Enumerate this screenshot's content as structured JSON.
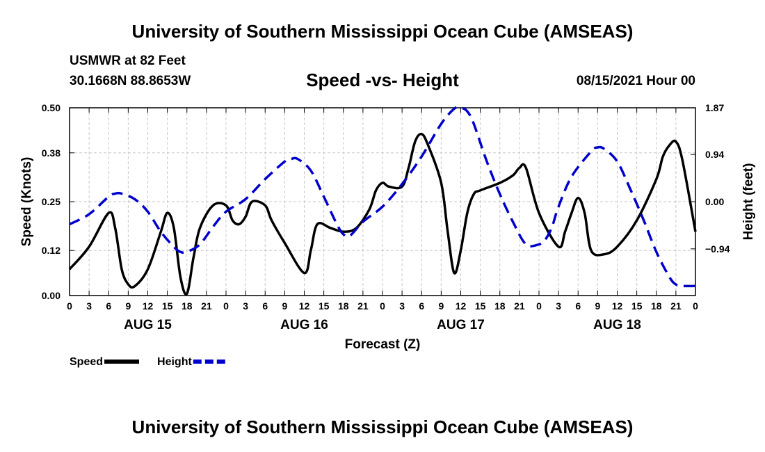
{
  "title_top": "University of Southern Mississippi Ocean Cube (AMSEAS)",
  "title_bottom": "University of Southern Mississippi Ocean Cube (AMSEAS)",
  "station": "USMWR at 82 Feet",
  "coords": "30.1668N  88.8653W",
  "subtitle": "Speed -vs- Height",
  "datetime": "08/15/2021 Hour 00",
  "chart_data": {
    "type": "line",
    "title": "Speed -vs- Height",
    "xlabel": "Forecast (Z)",
    "ylabel": "Speed (Knots)",
    "y2label": "Height (feet)",
    "ylim": [
      0,
      0.5
    ],
    "y2lim": [
      -1.87,
      1.87
    ],
    "xlim": [
      0,
      96
    ],
    "yticks": [
      "0.00",
      "0.12",
      "0.25",
      "0.38",
      "0.50"
    ],
    "y2ticks": [
      {
        "value": 1.87,
        "label": "1.87"
      },
      {
        "value": 0.94,
        "label": "0.94"
      },
      {
        "value": 0.0,
        "label": "0.00"
      },
      {
        "value": -0.94,
        "label": "−0.94"
      }
    ],
    "xticks": [
      {
        "value": 0,
        "label": "0"
      },
      {
        "value": 3,
        "label": "3"
      },
      {
        "value": 6,
        "label": "6"
      },
      {
        "value": 9,
        "label": "9"
      },
      {
        "value": 12,
        "label": "12"
      },
      {
        "value": 15,
        "label": "15"
      },
      {
        "value": 18,
        "label": "18"
      },
      {
        "value": 21,
        "label": "21"
      },
      {
        "value": 24,
        "label": "0"
      },
      {
        "value": 27,
        "label": "3"
      },
      {
        "value": 30,
        "label": "6"
      },
      {
        "value": 33,
        "label": "9"
      },
      {
        "value": 36,
        "label": "12"
      },
      {
        "value": 39,
        "label": "15"
      },
      {
        "value": 42,
        "label": "18"
      },
      {
        "value": 45,
        "label": "21"
      },
      {
        "value": 48,
        "label": "0"
      },
      {
        "value": 51,
        "label": "3"
      },
      {
        "value": 54,
        "label": "6"
      },
      {
        "value": 57,
        "label": "9"
      },
      {
        "value": 60,
        "label": "12"
      },
      {
        "value": 63,
        "label": "15"
      },
      {
        "value": 66,
        "label": "18"
      },
      {
        "value": 69,
        "label": "21"
      },
      {
        "value": 72,
        "label": "0"
      },
      {
        "value": 75,
        "label": "3"
      },
      {
        "value": 78,
        "label": "6"
      },
      {
        "value": 81,
        "label": "9"
      },
      {
        "value": 84,
        "label": "12"
      },
      {
        "value": 87,
        "label": "15"
      },
      {
        "value": 90,
        "label": "18"
      },
      {
        "value": 93,
        "label": "21"
      },
      {
        "value": 96,
        "label": "0"
      }
    ],
    "day_labels": [
      {
        "value": 12,
        "label": "AUG 15"
      },
      {
        "value": 36,
        "label": "AUG 16"
      },
      {
        "value": 60,
        "label": "AUG 17"
      },
      {
        "value": 84,
        "label": "AUG 18"
      }
    ],
    "grid": true,
    "series": [
      {
        "name": "Speed",
        "axis": "left",
        "color": "#000000",
        "dash": "solid",
        "x": [
          0,
          3,
          6,
          7,
          8,
          9,
          10,
          12,
          14,
          15,
          16,
          17,
          18,
          19,
          20,
          22,
          24,
          25,
          26,
          27,
          28,
          30,
          31,
          33,
          36,
          37,
          38,
          40,
          42,
          44,
          46,
          47,
          48,
          49,
          51,
          52,
          53,
          54,
          55,
          57,
          58,
          59,
          60,
          61,
          62,
          63,
          66,
          68,
          69,
          70,
          72,
          75,
          76,
          77,
          78,
          79,
          80,
          82,
          84,
          87,
          90,
          91,
          92,
          93,
          94,
          96
        ],
        "values": [
          0.07,
          0.13,
          0.22,
          0.18,
          0.07,
          0.03,
          0.025,
          0.07,
          0.17,
          0.22,
          0.18,
          0.05,
          0.005,
          0.1,
          0.18,
          0.24,
          0.24,
          0.2,
          0.19,
          0.21,
          0.25,
          0.24,
          0.2,
          0.14,
          0.06,
          0.12,
          0.19,
          0.18,
          0.17,
          0.18,
          0.23,
          0.28,
          0.3,
          0.29,
          0.29,
          0.34,
          0.41,
          0.43,
          0.4,
          0.3,
          0.17,
          0.06,
          0.12,
          0.22,
          0.27,
          0.28,
          0.3,
          0.32,
          0.34,
          0.34,
          0.22,
          0.13,
          0.17,
          0.22,
          0.26,
          0.22,
          0.12,
          0.11,
          0.13,
          0.2,
          0.31,
          0.37,
          0.4,
          0.41,
          0.36,
          0.17
        ]
      },
      {
        "name": "Height",
        "axis": "right",
        "color": "#0000cc",
        "dash": "dashed",
        "x": [
          0,
          3,
          6,
          7,
          8,
          10,
          12,
          14,
          16,
          17,
          18,
          20,
          22,
          24,
          27,
          30,
          33,
          34,
          35,
          37,
          39,
          41,
          42,
          43,
          45,
          48,
          51,
          54,
          57,
          59,
          60,
          61,
          62,
          64,
          66,
          68,
          70,
          72,
          73,
          74,
          75,
          77,
          80,
          81,
          82,
          84,
          86,
          88,
          90,
          92,
          93,
          94,
          96
        ],
        "values": [
          -0.45,
          -0.25,
          0.1,
          0.16,
          0.16,
          0.05,
          -0.2,
          -0.6,
          -0.9,
          -1.0,
          -1.0,
          -0.85,
          -0.5,
          -0.2,
          0.05,
          0.45,
          0.8,
          0.85,
          0.85,
          0.62,
          0.1,
          -0.45,
          -0.65,
          -0.68,
          -0.4,
          -0.1,
          0.35,
          0.9,
          1.55,
          1.85,
          1.9,
          1.8,
          1.55,
          0.8,
          0.15,
          -0.4,
          -0.85,
          -0.85,
          -0.75,
          -0.5,
          -0.1,
          0.5,
          1.0,
          1.08,
          1.05,
          0.8,
          0.25,
          -0.35,
          -1.0,
          -1.5,
          -1.65,
          -1.68,
          -1.68
        ]
      }
    ],
    "legend": [
      {
        "label": "Speed",
        "color": "#000000",
        "dash": "solid"
      },
      {
        "label": "Height",
        "color": "#0000cc",
        "dash": "dashed"
      }
    ],
    "legend_position": "bottom-left"
  }
}
